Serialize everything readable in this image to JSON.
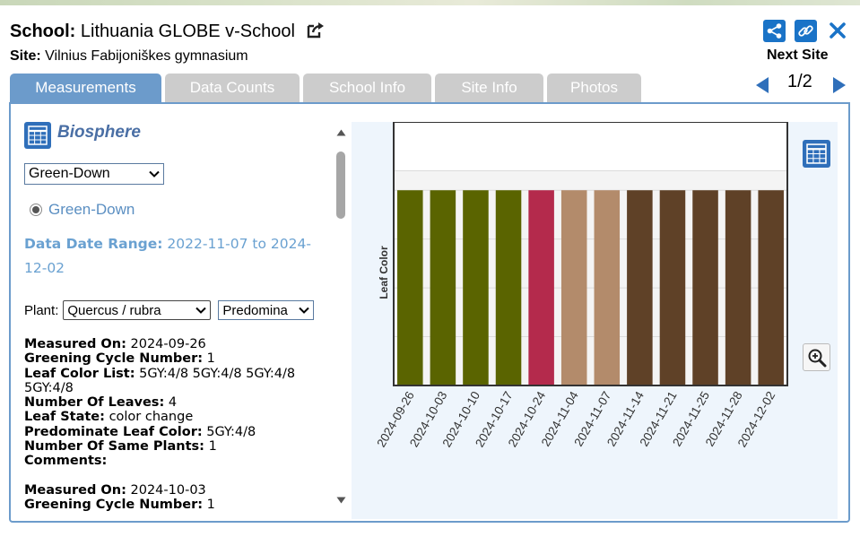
{
  "header": {
    "school_label": "School:",
    "school_name": "Lithuania GLOBE v-School",
    "site_label": "Site:",
    "site_name": "Vilnius Fabijoniškes gymnasium"
  },
  "toolbar": {
    "share_icon": "share-icon",
    "link_icon": "link-icon",
    "close_icon": "close-icon",
    "accent_color": "#1a73c7"
  },
  "pager": {
    "next_site_label": "Next Site",
    "page_text": "1/2"
  },
  "tabs": [
    {
      "label": "Measurements",
      "active": true
    },
    {
      "label": "Data Counts",
      "active": false
    },
    {
      "label": "School Info",
      "active": false
    },
    {
      "label": "Site Info",
      "active": false
    },
    {
      "label": "Photos",
      "active": false
    }
  ],
  "left": {
    "section_title": "Biosphere",
    "protocol_select": "Green-Down",
    "radio_option": "Green-Down",
    "date_range_label": "Data Date Range:",
    "date_range_value": "2022-11-07 to 2024-12-02",
    "plant_label": "Plant:",
    "plant_select": "Quercus / rubra",
    "leaf_select": "Predomina",
    "records": [
      {
        "measured_on_label": "Measured On",
        "measured_on": "2024-09-26",
        "greening_label": "Greening Cycle Number",
        "greening": "1",
        "color_list_label": "Leaf Color List",
        "color_list": "5GY:4/8 5GY:4/8 5GY:4/8 5GY:4/8",
        "leaves_label": "Number Of Leaves",
        "leaves": "4",
        "state_label": "Leaf State",
        "state": "color change",
        "predominate_label": "Predominate Leaf Color",
        "predominate": "5GY:4/8",
        "same_plants_label": "Number Of Same Plants",
        "same_plants": "1",
        "comments_label": "Comments",
        "comments": ""
      },
      {
        "measured_on_label": "Measured On",
        "measured_on": "2024-10-03",
        "greening_label": "Greening Cycle Number",
        "greening": "1"
      }
    ]
  },
  "chart_data": {
    "type": "bar",
    "title": "",
    "xlabel": "",
    "ylabel": "Leaf Color",
    "categories": [
      "2024-09-26",
      "2024-10-03",
      "2024-10-10",
      "2024-10-17",
      "2024-10-24",
      "2024-11-04",
      "2024-11-07",
      "2024-11-14",
      "2024-11-21",
      "2024-11-25",
      "2024-11-28",
      "2024-12-02"
    ],
    "values": [
      1,
      1,
      1,
      1,
      1,
      1,
      1,
      1,
      1,
      1,
      1,
      1
    ],
    "ylim": [
      0,
      1.35
    ],
    "bar_colors": [
      "#5a6400",
      "#5a6400",
      "#5a6400",
      "#5a6400",
      "#b42a4c",
      "#b38b6b",
      "#b38b6b",
      "#5f4127",
      "#5f4127",
      "#5f4127",
      "#5f4127",
      "#5f4127"
    ],
    "grid": true,
    "legend": "none"
  }
}
